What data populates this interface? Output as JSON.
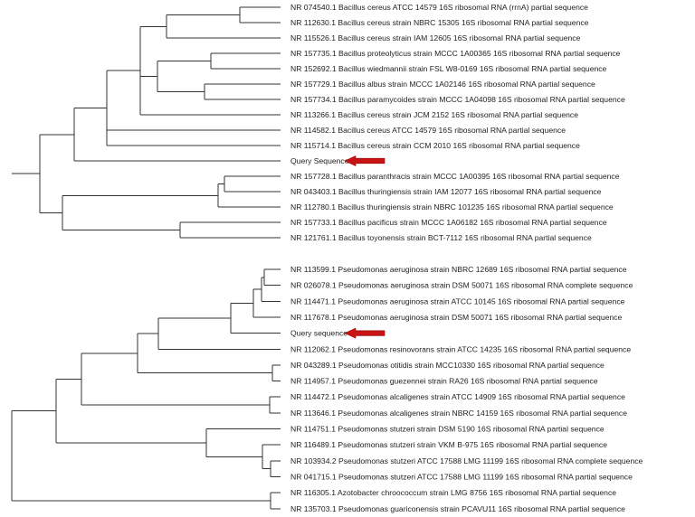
{
  "trees": [
    {
      "leaves": [
        "NR 074540.1 Bacillus cereus ATCC 14579 16S ribosomal RNA (rrnA) partial sequence",
        "NR 112630.1 Bacillus cereus strain NBRC 15305 16S ribosomal RNA partial sequence",
        "NR 115526.1 Bacillus cereus strain IAM 12605 16S ribosomal RNA partial sequence",
        "NR 157735.1 Bacillus proteolyticus strain MCCC 1A00365 16S ribosomal RNA partial sequence",
        "NR 152692.1 Bacillus wiedmannii strain FSL W8-0169 16S ribosomal RNA partial sequence",
        "NR 157729.1 Bacillus albus strain MCCC 1A02146 16S ribosomal RNA partial sequence",
        "NR 157734.1 Bacillus paramycoides strain MCCC 1A04098 16S ribosomal RNA partial sequence",
        "NR 113266.1 Bacillus cereus strain JCM 2152 16S ribosomal RNA partial sequence",
        "NR 114582.1 Bacillus cereus ATCC 14579 16S ribosomal RNA partial sequence",
        "NR 115714.1 Bacillus cereus strain CCM 2010 16S ribosomal RNA partial sequence",
        "Query Sequence",
        "NR 157728.1 Bacillus paranthracis strain MCCC 1A00395 16S ribosomal RNA partial sequence",
        "NR 043403.1 Bacillus thuringiensis strain IAM 12077 16S ribosomal RNA partial sequence",
        "NR 112780.1 Bacillus thuringiensis strain NBRC 101235 16S ribosomal RNA partial sequence",
        "NR 157733.1 Bacillus pacificus strain MCCC 1A06182 16S ribosomal RNA partial sequence",
        "NR 121761.1 Bacillus toyonensis strain BCT-7112 16S ribosomal RNA partial sequence"
      ],
      "query_index": 10
    },
    {
      "leaves": [
        "NR 113599.1 Pseudomonas aeruginosa strain NBRC 12689 16S ribosomal RNA partial sequence",
        "NR 026078.1 Pseudomonas aeruginosa strain DSM 50071 16S ribosomal RNA complete sequence",
        "NR 114471.1 Pseudomonas aeruginosa strain ATCC 10145 16S ribosomal RNA partial sequence",
        "NR 117678.1 Pseudomonas aeruginosa strain DSM 50071 16S ribosomal RNA partial sequence",
        "Query sequence",
        "NR 112062.1 Pseudomonas resinovorans strain ATCC 14235 16S ribosomal RNA partial sequence",
        "NR 043289.1 Pseudomonas otitidis strain MCC10330 16S ribosomal RNA partial sequence",
        "NR 114957.1 Pseudomonas guezennei strain RA26 16S ribosomal RNA partial sequence",
        "NR 114472.1 Pseudomonas alcaligenes strain ATCC 14909 16S ribosomal RNA partial sequence",
        "NR 113646.1 Pseudomonas alcaligenes strain NBRC 14159 16S ribosomal RNA partial sequence",
        "NR 114751.1 Pseudomonas stutzeri strain DSM 5190 16S ribosomal RNA partial sequence",
        "NR 116489.1 Pseudomonas stutzeri strain VKM B-975 16S ribosomal RNA partial sequence",
        "NR 103934.2 Pseudomonas stutzeri ATCC 17588 LMG 11199 16S ribosomal RNA complete sequence",
        "NR 041715.1 Pseudomonas stutzeri ATCC 17588 LMG 11199 16S ribosomal RNA partial sequence",
        "NR 116305.1 Azotobacter chroococcum strain LMG 8756 16S ribosomal RNA partial sequence",
        "NR 135703.1 Pseudomonas guariconensis strain PCAVU11 16S ribosomal RNA partial sequence"
      ],
      "query_index": 4
    }
  ],
  "colors": {
    "lines": "#333333",
    "text": "#222222",
    "arrow": "#c81414"
  }
}
